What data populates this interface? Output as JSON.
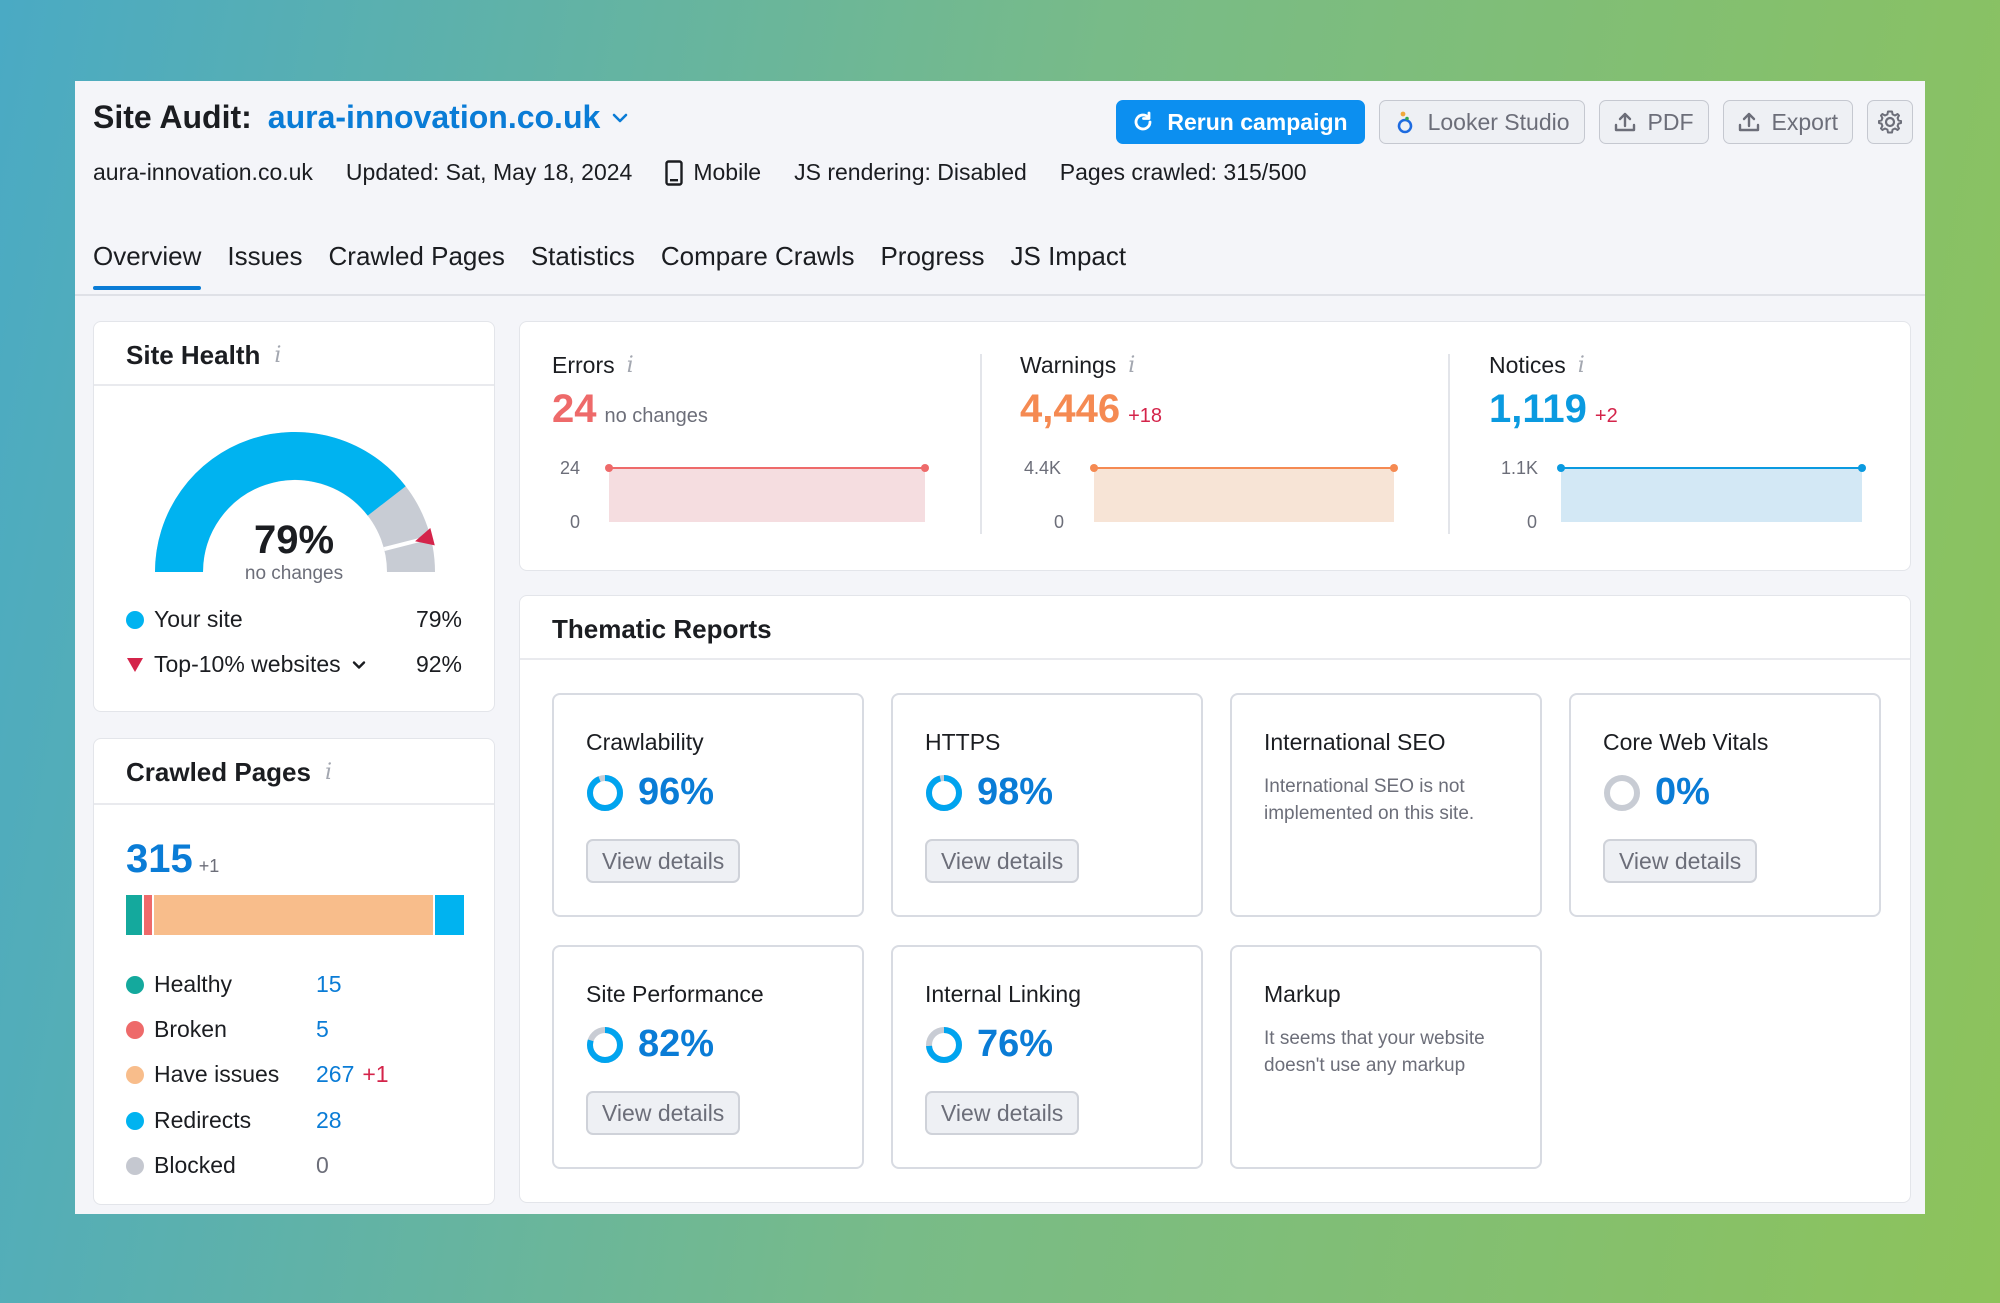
{
  "header": {
    "title_prefix": "Site Audit:",
    "domain": "aura-innovation.co.uk",
    "meta": {
      "site": "aura-innovation.co.uk",
      "updated": "Updated: Sat, May 18, 2024",
      "device": "Mobile",
      "js_rendering": "JS rendering: Disabled",
      "pages_crawled": "Pages crawled: 315/500"
    },
    "actions": {
      "rerun": "Rerun campaign",
      "looker": "Looker Studio",
      "pdf": "PDF",
      "export": "Export"
    }
  },
  "tabs": [
    "Overview",
    "Issues",
    "Crawled Pages",
    "Statistics",
    "Compare Crawls",
    "Progress",
    "JS Impact"
  ],
  "site_health": {
    "title": "Site Health",
    "info": "i",
    "value_label": "79%",
    "value": 79,
    "sub": "no changes",
    "legend": [
      {
        "label": "Your site",
        "value": "79%",
        "color": "#00b3f0"
      },
      {
        "label": "Top-10% websites",
        "value": "92%",
        "color": "#d4244a"
      }
    ]
  },
  "crawled_pages": {
    "title": "Crawled Pages",
    "info": "i",
    "total": "315",
    "delta": "+1",
    "rows": [
      {
        "label": "Healthy",
        "value": "15",
        "count": 15,
        "delta": "",
        "color": "#14a99d"
      },
      {
        "label": "Broken",
        "value": "5",
        "count": 5,
        "delta": "",
        "color": "#ee6a6a"
      },
      {
        "label": "Have issues",
        "value": "267",
        "count": 267,
        "delta": "+1",
        "color": "#f8bd8b"
      },
      {
        "label": "Redirects",
        "value": "28",
        "count": 28,
        "delta": "",
        "color": "#00b3f0"
      },
      {
        "label": "Blocked",
        "value": "0",
        "count": 0,
        "delta": "",
        "color": "#c5c8d0"
      }
    ]
  },
  "issues": [
    {
      "label": "Errors",
      "info": "i",
      "value": "24",
      "delta": "no changes",
      "color": "#ee6a6a",
      "fill": "#f5dde0",
      "ytop": "24",
      "ybottom": "0",
      "delta_color": "#6c6e79"
    },
    {
      "label": "Warnings",
      "info": "i",
      "value": "4,446",
      "delta": "+18",
      "color": "#f58a52",
      "fill": "#f7e4d6",
      "ytop": "4.4K",
      "ybottom": "0",
      "delta_color": "#d4244a"
    },
    {
      "label": "Notices",
      "info": "i",
      "value": "1,119",
      "delta": "+2",
      "color": "#0a9ae0",
      "fill": "#d3e8f5",
      "ytop": "1.1K",
      "ybottom": "0",
      "delta_color": "#d4244a"
    }
  ],
  "thematic": {
    "title": "Thematic Reports",
    "view_label": "View details",
    "reports": [
      {
        "name": "Crawlability",
        "pct": "96%",
        "value": 96,
        "desc": ""
      },
      {
        "name": "HTTPS",
        "pct": "98%",
        "value": 98,
        "desc": ""
      },
      {
        "name": "International SEO",
        "pct": "",
        "value": null,
        "desc": "International SEO is not implemented on this site."
      },
      {
        "name": "Core Web Vitals",
        "pct": "0%",
        "value": 0,
        "desc": ""
      },
      {
        "name": "Site Performance",
        "pct": "82%",
        "value": 82,
        "desc": ""
      },
      {
        "name": "Internal Linking",
        "pct": "76%",
        "value": 76,
        "desc": ""
      },
      {
        "name": "Markup",
        "pct": "",
        "value": null,
        "desc": "It seems that your website doesn't use any markup"
      }
    ]
  }
}
